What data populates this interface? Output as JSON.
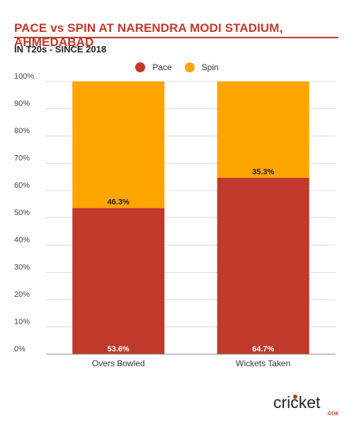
{
  "chart_data": {
    "type": "bar",
    "stacked": true,
    "title": "PACE vs SPIN AT NARENDRA MODI STADIUM, AHMEDABAD",
    "subtitle": "IN T20s - SINCE 2018",
    "categories": [
      "Overs Bowled",
      "Wickets Taken"
    ],
    "series": [
      {
        "name": "Pace",
        "values": [
          53.6,
          64.7
        ],
        "labels": [
          "53.6%",
          "64.7%"
        ],
        "color": "#c0392b"
      },
      {
        "name": "Spin",
        "values": [
          46.3,
          35.3
        ],
        "labels": [
          "46.3%",
          "35.3%"
        ],
        "color": "#ffa500"
      }
    ],
    "ylim": [
      0,
      100
    ],
    "yticks": [
      "0%",
      "10%",
      "20%",
      "30%",
      "40%",
      "50%",
      "60%",
      "70%",
      "80%",
      "90%",
      "100%"
    ],
    "grid": true,
    "legend_position": "top-center",
    "xlabel": "",
    "ylabel": ""
  },
  "branding": {
    "logo_text": "cricket",
    "logo_sub": ".COM",
    "accent": "#c0392b"
  }
}
